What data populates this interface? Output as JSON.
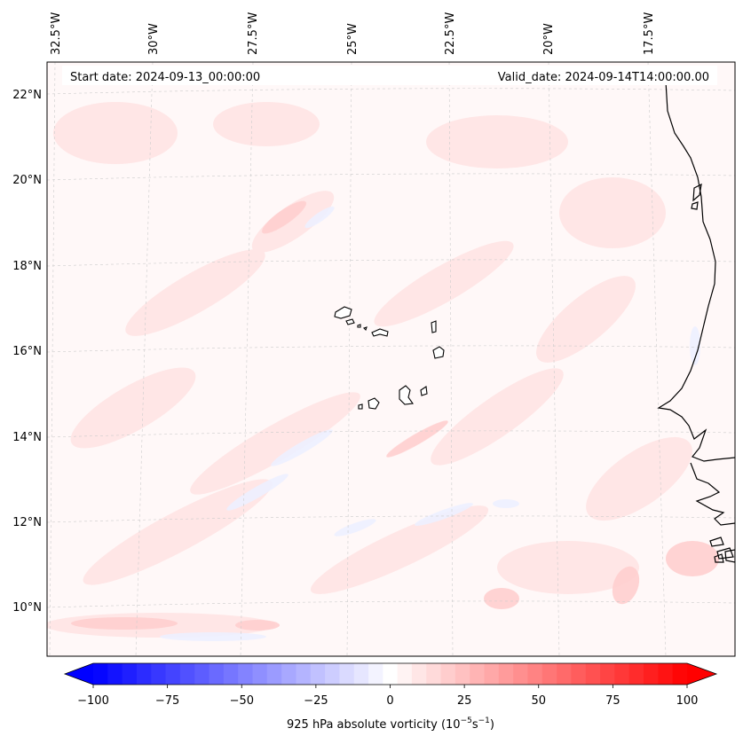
{
  "header": {
    "start_label": "Start date: 2024-09-13_00:00:00",
    "valid_label": "Valid_date: 2024-09-14T14:00:00.00"
  },
  "map": {
    "lon_ticks": [
      "32.5°W",
      "30°W",
      "27.5°W",
      "25°W",
      "22.5°W",
      "20°W",
      "17.5°W"
    ],
    "lat_ticks": [
      "22°N",
      "20°N",
      "18°N",
      "16°N",
      "14°N",
      "12°N",
      "10°N"
    ]
  },
  "colorbar": {
    "ticks": [
      "−100",
      "−75",
      "−50",
      "−25",
      "0",
      "25",
      "50",
      "75",
      "100"
    ],
    "min": -100,
    "max": 100,
    "n_levels": 41,
    "label_text": "925 hPa absolute vorticity (10",
    "label_exp1": "−5",
    "label_mid": "s",
    "label_exp2": "−1",
    "label_end": ")",
    "neg_color": "#0000ff",
    "pos_color": "#ff0000",
    "mid_color": "#ffffff"
  }
}
